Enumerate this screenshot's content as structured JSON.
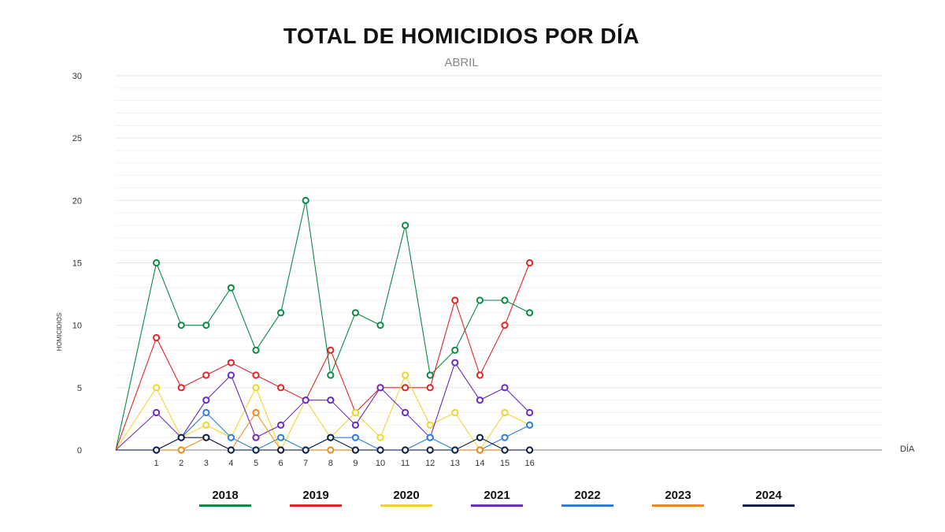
{
  "chart_data": {
    "type": "line",
    "title": "TOTAL DE HOMICIDIOS POR DÍA",
    "subtitle": "ABRIL",
    "xlabel": "DÍA",
    "ylabel": "HOMICIDIOS",
    "x": [
      1,
      2,
      3,
      4,
      5,
      6,
      7,
      8,
      9,
      10,
      11,
      12,
      13,
      14,
      15,
      16
    ],
    "ylim": [
      0,
      30
    ],
    "yticks": [
      0,
      5,
      10,
      15,
      20,
      25,
      30
    ],
    "grid": true,
    "legend_position": "bottom",
    "series": [
      {
        "name": "2018",
        "color": "#0a8a45",
        "values": [
          15,
          10,
          10,
          13,
          8,
          11,
          20,
          6,
          11,
          10,
          18,
          6,
          8,
          12,
          12,
          11
        ]
      },
      {
        "name": "2019",
        "color": "#e02525",
        "values": [
          9,
          5,
          6,
          7,
          6,
          5,
          4,
          8,
          3,
          5,
          5,
          5,
          12,
          6,
          10,
          15
        ]
      },
      {
        "name": "2020",
        "color": "#f0d530",
        "values": [
          5,
          1,
          2,
          1,
          5,
          0,
          4,
          1,
          3,
          1,
          6,
          2,
          3,
          0,
          3,
          2
        ]
      },
      {
        "name": "2021",
        "color": "#6a2bc0",
        "values": [
          3,
          1,
          4,
          6,
          1,
          2,
          4,
          4,
          2,
          5,
          3,
          1,
          7,
          4,
          5,
          3
        ]
      },
      {
        "name": "2022",
        "color": "#2c7fd9",
        "values": [
          0,
          1,
          3,
          1,
          0,
          1,
          0,
          1,
          1,
          0,
          0,
          1,
          0,
          0,
          1,
          2
        ]
      },
      {
        "name": "2023",
        "color": "#f08a1a",
        "values": [
          0,
          0,
          1,
          0,
          3,
          0,
          0,
          0,
          0,
          0,
          0,
          0,
          0,
          0,
          0,
          0
        ]
      },
      {
        "name": "2024",
        "color": "#0b1f4d",
        "values": [
          0,
          1,
          1,
          0,
          0,
          0,
          0,
          1,
          0,
          0,
          0,
          0,
          0,
          1,
          0,
          0
        ]
      }
    ]
  }
}
